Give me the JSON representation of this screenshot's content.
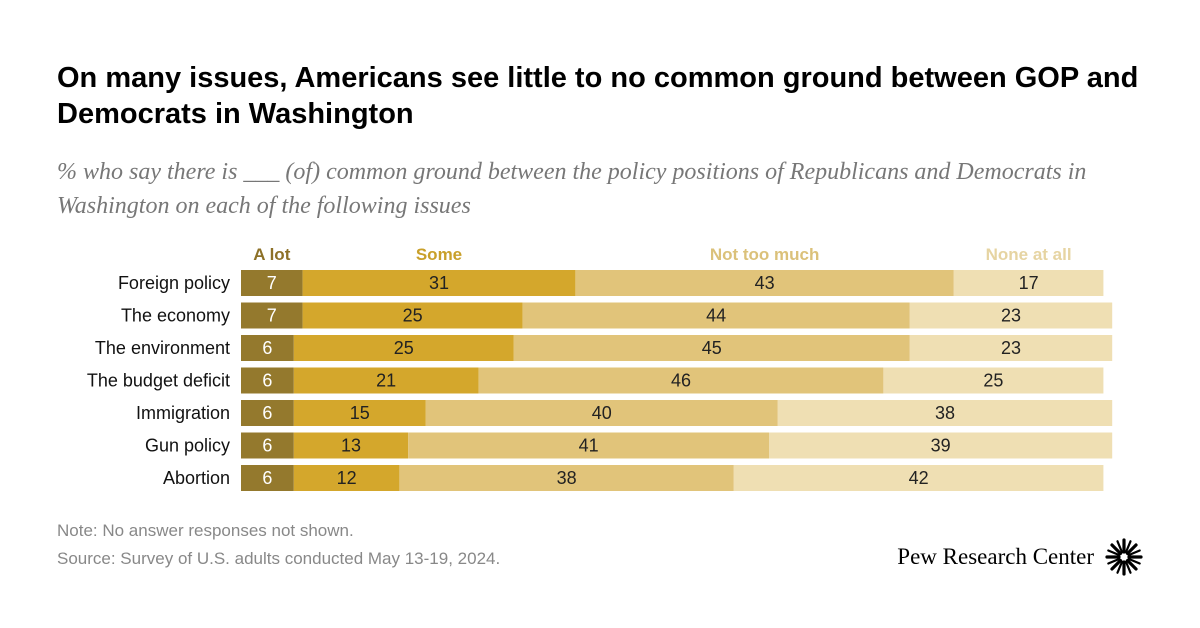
{
  "title": "On many issues, Americans see little to no common ground between GOP and Democrats in Washington",
  "subtitle": "% who say there is ___ (of) common ground between the policy positions of Republicans and Democrats in Washington on each of the following issues",
  "note": "Note: No answer responses not shown.",
  "source": "Source: Survey of U.S. adults conducted May 13-19, 2024.",
  "brand": "Pew Research Center",
  "colors": {
    "a_lot": "#94792d",
    "some": "#d4a72c",
    "not_too_much": "#e1c47a",
    "none_at_all": "#efdfb3",
    "legend_a_lot": "#8d7128",
    "legend_some": "#c9a02a",
    "legend_not_too_much": "#dbc17a",
    "legend_none_at_all": "#e6d4a2"
  },
  "chart_data": {
    "type": "bar",
    "orientation": "horizontal",
    "stacked": true,
    "categories": [
      "Foreign policy",
      "The economy",
      "The environment",
      "The budget deficit",
      "Immigration",
      "Gun policy",
      "Abortion"
    ],
    "series": [
      {
        "name": "A lot",
        "values": [
          7,
          7,
          6,
          6,
          6,
          6,
          6
        ]
      },
      {
        "name": "Some",
        "values": [
          31,
          25,
          25,
          21,
          15,
          13,
          12
        ]
      },
      {
        "name": "Not too much",
        "values": [
          43,
          44,
          45,
          46,
          40,
          41,
          38
        ]
      },
      {
        "name": "None at all",
        "values": [
          17,
          23,
          23,
          25,
          38,
          39,
          42
        ]
      }
    ],
    "legend_position": "top",
    "grid": false
  }
}
